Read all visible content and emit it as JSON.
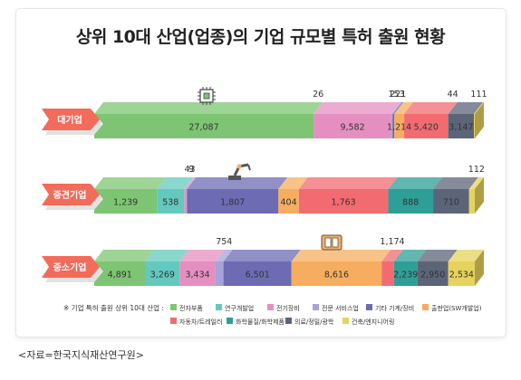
{
  "title": "상위 10대 산업(업종)의 기업 규모별 특허 출원 현황",
  "source": "<자료=한국지식재산연구원>",
  "legend_title": "※ 기업 특허 출원 상위 10대 산업 :",
  "colors": {
    "label_fill": "#f26b5b",
    "label_shadow": "#e2e2e2"
  },
  "icons": [
    "chip-icon",
    "robot-arm-icon",
    "battery-icon"
  ],
  "chart_data": {
    "type": "bar",
    "stacked": true,
    "normalized": true,
    "orientation": "horizontal",
    "categories": [
      "대기업",
      "중견기업",
      "중소기업"
    ],
    "series": [
      {
        "name": "전자부품",
        "color": "#7dc572",
        "values": [
          27087,
          1239,
          4891
        ]
      },
      {
        "name": "연구개발업",
        "color": "#63c9be",
        "values": [
          26,
          538,
          3269
        ]
      },
      {
        "name": "전기장비",
        "color": "#e58fc1",
        "values": [
          9582,
          43,
          3434
        ]
      },
      {
        "name": "전문 서비스업",
        "color": "#a7a3d8",
        "values": [
          153,
          9,
          754
        ]
      },
      {
        "name": "기타 기계/장비",
        "color": "#6c6bb4",
        "values": [
          221,
          1807,
          6501
        ]
      },
      {
        "name": "출판업(SW개발업)",
        "color": "#f7ad5f",
        "values": [
          1214,
          404,
          8616
        ]
      },
      {
        "name": "자동차/트레일러",
        "color": "#f26b70",
        "values": [
          5420,
          1763,
          1174
        ]
      },
      {
        "name": "화학물질/화학제품",
        "color": "#2e9f96",
        "values": [
          44,
          888,
          2239
        ]
      },
      {
        "name": "의료/정밀/광학",
        "color": "#5c6478",
        "values": [
          3147,
          710,
          2950
        ]
      },
      {
        "name": "건축/엔지니어링",
        "color": "#e6d35c",
        "values": [
          111,
          112,
          2534
        ]
      }
    ],
    "value_labels": [
      {
        "row": 0,
        "series": 0,
        "text": "27,087",
        "pos": "inside"
      },
      {
        "row": 0,
        "series": 1,
        "text": "26",
        "pos": "above"
      },
      {
        "row": 0,
        "series": 2,
        "text": "9,582",
        "pos": "inside"
      },
      {
        "row": 0,
        "series": 3,
        "text": "153",
        "pos": "above"
      },
      {
        "row": 0,
        "series": 4,
        "text": "221",
        "pos": "above"
      },
      {
        "row": 0,
        "series": 5,
        "text": "1,214",
        "pos": "inside"
      },
      {
        "row": 0,
        "series": 6,
        "text": "5,420",
        "pos": "inside"
      },
      {
        "row": 0,
        "series": 7,
        "text": "44",
        "pos": "above"
      },
      {
        "row": 0,
        "series": 8,
        "text": "3,147",
        "pos": "inside"
      },
      {
        "row": 0,
        "series": 9,
        "text": "111",
        "pos": "above"
      },
      {
        "row": 1,
        "series": 0,
        "text": "1,239",
        "pos": "inside"
      },
      {
        "row": 1,
        "series": 1,
        "text": "538",
        "pos": "inside"
      },
      {
        "row": 1,
        "series": 2,
        "text": "43",
        "pos": "above"
      },
      {
        "row": 1,
        "series": 3,
        "text": "9",
        "pos": "above"
      },
      {
        "row": 1,
        "series": 4,
        "text": "1,807",
        "pos": "inside"
      },
      {
        "row": 1,
        "series": 5,
        "text": "404",
        "pos": "inside"
      },
      {
        "row": 1,
        "series": 6,
        "text": "1,763",
        "pos": "inside"
      },
      {
        "row": 1,
        "series": 7,
        "text": "888",
        "pos": "inside"
      },
      {
        "row": 1,
        "series": 8,
        "text": "710",
        "pos": "inside"
      },
      {
        "row": 1,
        "series": 9,
        "text": "112",
        "pos": "above"
      },
      {
        "row": 2,
        "series": 0,
        "text": "4,891",
        "pos": "inside"
      },
      {
        "row": 2,
        "series": 1,
        "text": "3,269",
        "pos": "inside"
      },
      {
        "row": 2,
        "series": 2,
        "text": "3,434",
        "pos": "inside"
      },
      {
        "row": 2,
        "series": 3,
        "text": "754",
        "pos": "above"
      },
      {
        "row": 2,
        "series": 4,
        "text": "6,501",
        "pos": "inside"
      },
      {
        "row": 2,
        "series": 5,
        "text": "8,616",
        "pos": "inside"
      },
      {
        "row": 2,
        "series": 6,
        "text": "1,174",
        "pos": "above"
      },
      {
        "row": 2,
        "series": 7,
        "text": "2,239",
        "pos": "inside"
      },
      {
        "row": 2,
        "series": 8,
        "text": "2,950",
        "pos": "inside"
      },
      {
        "row": 2,
        "series": 9,
        "text": "2,534",
        "pos": "inside"
      }
    ]
  }
}
